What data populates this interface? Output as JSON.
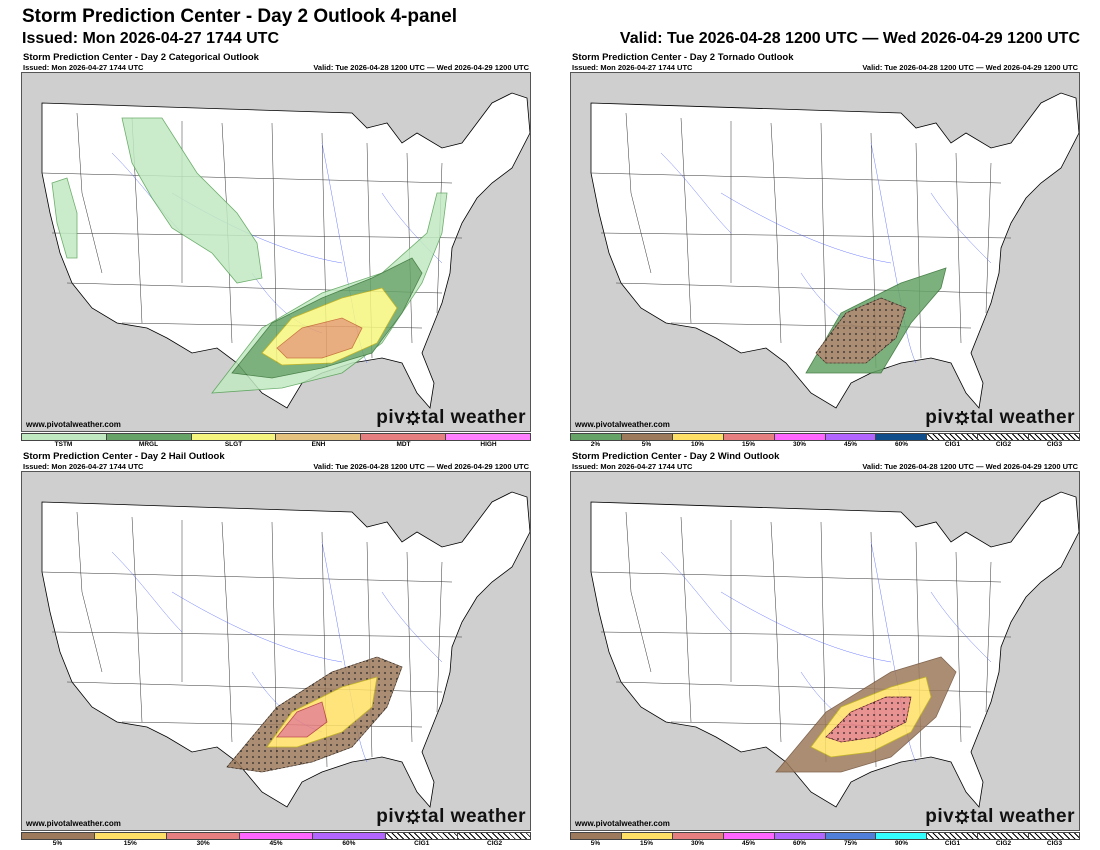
{
  "header": {
    "title": "Storm Prediction Center - Day 2 Outlook 4-panel",
    "issued": "Issued: Mon 2026-04-27 1744 UTC",
    "valid": "Valid: Tue 2026-04-28 1200 UTC — Wed 2026-04-29 1200 UTC"
  },
  "panels": {
    "categorical": {
      "title": "Storm Prediction Center - Day 2 Categorical Outlook",
      "issued": "Issued: Mon 2026-04-27 1744 UTC",
      "valid": "Valid: Tue 2026-04-28 1200 UTC — Wed 2026-04-29 1200 UTC",
      "site": "www.pivotalweather.com",
      "legend": [
        {
          "label": "TSTM",
          "color": "#c1e9c1"
        },
        {
          "label": "MRGL",
          "color": "#66a366"
        },
        {
          "label": "SLGT",
          "color": "#f6f67f"
        },
        {
          "label": "ENH",
          "color": "#e6c27f"
        },
        {
          "label": "MDT",
          "color": "#e67f7f"
        },
        {
          "label": "HIGH",
          "color": "#ff7fff"
        }
      ]
    },
    "tornado": {
      "title": "Storm Prediction Center - Day 2 Tornado Outlook",
      "issued": "Issued: Mon 2026-04-27 1744 UTC",
      "valid": "Valid: Tue 2026-04-28 1200 UTC — Wed 2026-04-29 1200 UTC",
      "site": "www.pivotalweather.com",
      "legend": [
        {
          "label": "2%",
          "color": "#66a366"
        },
        {
          "label": "5%",
          "color": "#9d7a5b"
        },
        {
          "label": "10%",
          "color": "#ffe066"
        },
        {
          "label": "15%",
          "color": "#e67f7f"
        },
        {
          "label": "30%",
          "color": "#ff66ff"
        },
        {
          "label": "45%",
          "color": "#b266ff"
        },
        {
          "label": "60%",
          "color": "#104e8b"
        },
        {
          "label": "CIG1",
          "color": "#ffffff"
        },
        {
          "label": "CIG2",
          "color": "#ffffff"
        },
        {
          "label": "CIG3",
          "color": "#ffffff"
        }
      ]
    },
    "hail": {
      "title": "Storm Prediction Center - Day 2 Hail Outlook",
      "issued": "Issued: Mon 2026-04-27 1744 UTC",
      "valid": "Valid: Tue 2026-04-28 1200 UTC — Wed 2026-04-29 1200 UTC",
      "site": "www.pivotalweather.com",
      "legend": [
        {
          "label": "5%",
          "color": "#9d7a5b"
        },
        {
          "label": "15%",
          "color": "#ffe066"
        },
        {
          "label": "30%",
          "color": "#e67f7f"
        },
        {
          "label": "45%",
          "color": "#ff66ff"
        },
        {
          "label": "60%",
          "color": "#b266ff"
        },
        {
          "label": "CIG1",
          "color": "#ffffff"
        },
        {
          "label": "CIG2",
          "color": "#ffffff"
        }
      ]
    },
    "wind": {
      "title": "Storm Prediction Center - Day 2 Wind Outlook",
      "issued": "Issued: Mon 2026-04-27 1744 UTC",
      "valid": "Valid: Tue 2026-04-28 1200 UTC — Wed 2026-04-29 1200 UTC",
      "site": "www.pivotalweather.com",
      "legend": [
        {
          "label": "5%",
          "color": "#9d7a5b"
        },
        {
          "label": "15%",
          "color": "#ffe066"
        },
        {
          "label": "30%",
          "color": "#e67f7f"
        },
        {
          "label": "45%",
          "color": "#ff66ff"
        },
        {
          "label": "60%",
          "color": "#b266ff"
        },
        {
          "label": "75%",
          "color": "#4f7fd9"
        },
        {
          "label": "90%",
          "color": "#33ffff"
        },
        {
          "label": "CIG1",
          "color": "#ffffff"
        },
        {
          "label": "CIG2",
          "color": "#ffffff"
        },
        {
          "label": "CIG3",
          "color": "#ffffff"
        }
      ]
    }
  },
  "brand": {
    "text_left": "piv",
    "text_right": "tal weather"
  }
}
